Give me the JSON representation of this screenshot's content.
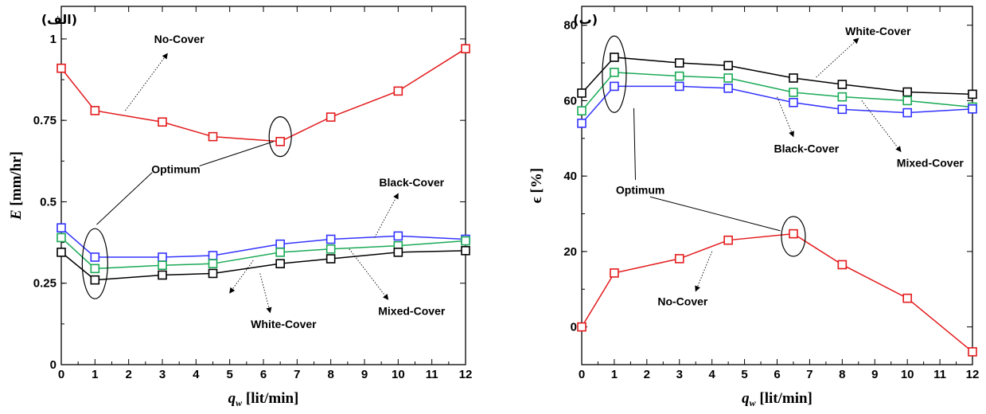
{
  "chart_data": [
    {
      "type": "line",
      "panel_label": "(الف)",
      "xlabel": "q_w [lit/min]",
      "xlabel_main": "q",
      "xlabel_sub": "w",
      "xlabel_unit": " [lit/min]",
      "ylabel": "E [mm/hr]",
      "ylabel_main": "E",
      "ylabel_unit": " [mm/hr]",
      "xlim": [
        0,
        12
      ],
      "ylim": [
        0,
        1.1
      ],
      "xticks": [
        0,
        1,
        2,
        3,
        4,
        5,
        6,
        7,
        8,
        9,
        10,
        11,
        12
      ],
      "yticks": [
        0,
        0.25,
        0.5,
        0.75,
        1
      ],
      "ytick_labels": [
        "0",
        "0.25",
        "0.5",
        "0.75",
        "1"
      ],
      "grid": false,
      "series": [
        {
          "name": "No-Cover",
          "color": "#e31a1c",
          "x": [
            0,
            1,
            3,
            4.5,
            6.5,
            8,
            10,
            12
          ],
          "y": [
            0.91,
            0.78,
            0.745,
            0.7,
            0.685,
            0.76,
            0.84,
            0.97
          ]
        },
        {
          "name": "Black-Cover",
          "color": "#3333ff",
          "x": [
            0,
            1,
            3,
            4.5,
            6.5,
            8,
            10,
            12
          ],
          "y": [
            0.42,
            0.33,
            0.33,
            0.335,
            0.37,
            0.385,
            0.395,
            0.385
          ]
        },
        {
          "name": "Mixed-Cover",
          "color": "#1aaa55",
          "x": [
            0,
            1,
            3,
            4.5,
            6.5,
            8,
            10,
            12
          ],
          "y": [
            0.39,
            0.295,
            0.305,
            0.31,
            0.345,
            0.355,
            0.365,
            0.38
          ]
        },
        {
          "name": "White-Cover",
          "color": "#000000",
          "x": [
            0,
            1,
            3,
            4.5,
            6.5,
            8,
            10,
            12
          ],
          "y": [
            0.345,
            0.26,
            0.275,
            0.28,
            0.31,
            0.325,
            0.345,
            0.35
          ]
        }
      ],
      "annotations": [
        {
          "text": "No-Cover",
          "x": 3.5,
          "y": 1.0
        },
        {
          "text": "Optimum",
          "x": 3.4,
          "y": 0.6
        },
        {
          "text": "Black-Cover",
          "x": 10.4,
          "y": 0.56
        },
        {
          "text": "Mixed-Cover",
          "x": 10.4,
          "y": 0.165
        },
        {
          "text": "White-Cover",
          "x": 6.6,
          "y": 0.125
        }
      ]
    },
    {
      "type": "line",
      "panel_label": "(ب)",
      "xlabel": "q_w [lit/min]",
      "xlabel_main": "q",
      "xlabel_sub": "w",
      "xlabel_unit": " [lit/min]",
      "ylabel": "ϵ [%]",
      "ylabel_main": "ϵ",
      "ylabel_unit": " [%]",
      "xlim": [
        0,
        12
      ],
      "ylim": [
        -10,
        85
      ],
      "xticks": [
        0,
        1,
        2,
        3,
        4,
        5,
        6,
        7,
        8,
        9,
        10,
        11,
        12
      ],
      "yticks": [
        0,
        20,
        40,
        60,
        80
      ],
      "ytick_labels": [
        "0",
        "20",
        "40",
        "60",
        "80"
      ],
      "grid": false,
      "series": [
        {
          "name": "White-Cover",
          "color": "#000000",
          "x": [
            0,
            1,
            3,
            4.5,
            6.5,
            8,
            10,
            12
          ],
          "y": [
            62,
            71.5,
            70,
            69.3,
            66,
            64.3,
            62.3,
            61.7
          ]
        },
        {
          "name": "Mixed-Cover",
          "color": "#1aaa55",
          "x": [
            0,
            1,
            3,
            4.5,
            6.5,
            8,
            10,
            12
          ],
          "y": [
            57.3,
            67.5,
            66.5,
            66,
            62.2,
            61,
            60,
            58.3
          ]
        },
        {
          "name": "Black-Cover",
          "color": "#3333ff",
          "x": [
            0,
            1,
            3,
            4.5,
            6.5,
            8,
            10,
            12
          ],
          "y": [
            54,
            63.8,
            63.8,
            63.3,
            59.5,
            57.7,
            56.8,
            57.8
          ]
        },
        {
          "name": "No-Cover",
          "color": "#e31a1c",
          "x": [
            0,
            1,
            3,
            4.5,
            6.5,
            8,
            10,
            12
          ],
          "y": [
            0,
            14.3,
            18.1,
            23,
            24.7,
            16.5,
            7.6,
            -6.6
          ]
        }
      ],
      "annotations": [
        {
          "text": "White-Cover",
          "x": 9.1,
          "y": 78.5
        },
        {
          "text": "Black-Cover",
          "x": 6.9,
          "y": 47.3
        },
        {
          "text": "Mixed-Cover",
          "x": 10.7,
          "y": 43.5
        },
        {
          "text": "Optimum",
          "x": 1.8,
          "y": 36.3
        },
        {
          "text": "No-Cover",
          "x": 3.1,
          "y": 6.8
        }
      ]
    }
  ]
}
